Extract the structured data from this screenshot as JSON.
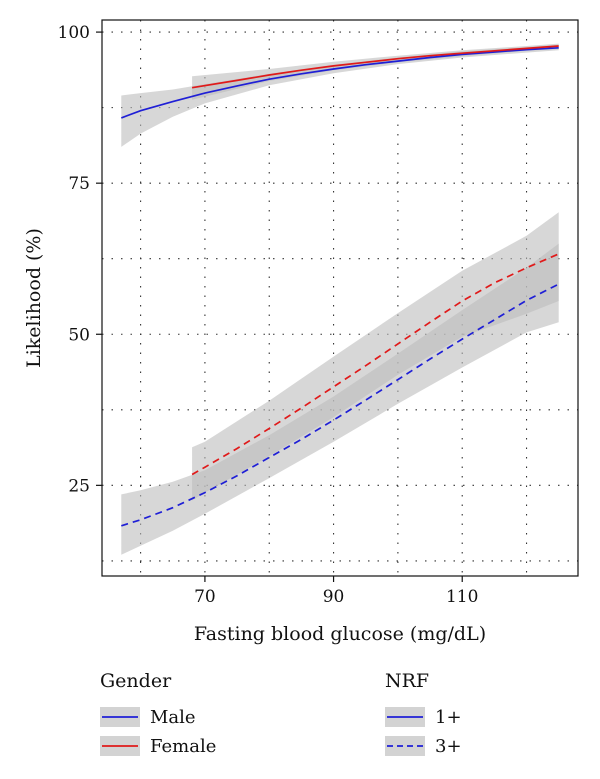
{
  "chart_data": {
    "type": "line",
    "xlabel": "Fasting blood glucose (mg/dL)",
    "ylabel": "Likelihood (%)",
    "xlim": [
      54,
      128
    ],
    "ylim": [
      10,
      102
    ],
    "xticks": [
      70,
      90,
      110
    ],
    "yticks": [
      25,
      50,
      75,
      100
    ],
    "x_grid": [
      60,
      70,
      80,
      90,
      100,
      110,
      120
    ],
    "y_grid": [
      12.5,
      25,
      37.5,
      50,
      62.5,
      75,
      87.5,
      100
    ],
    "grid": true,
    "series": [
      {
        "name": "Male / 1+",
        "color": "#1f1fd6",
        "dash": "solid",
        "points": [
          [
            57,
            85.8
          ],
          [
            60,
            87
          ],
          [
            65,
            88.5
          ],
          [
            70,
            89.9
          ],
          [
            75,
            91.1
          ],
          [
            80,
            92.2
          ],
          [
            85,
            93.1
          ],
          [
            90,
            93.9
          ],
          [
            95,
            94.6
          ],
          [
            100,
            95.2
          ],
          [
            105,
            95.8
          ],
          [
            110,
            96.3
          ],
          [
            115,
            96.7
          ],
          [
            120,
            97.1
          ],
          [
            125,
            97.4
          ]
        ],
        "band": {
          "lower": [
            [
              57,
              81
            ],
            [
              60,
              83.2
            ],
            [
              65,
              86
            ],
            [
              70,
              88.2
            ],
            [
              80,
              91.2
            ],
            [
              90,
              93.2
            ],
            [
              100,
              94.7
            ],
            [
              110,
              95.8
            ],
            [
              120,
              96.6
            ],
            [
              125,
              97
            ]
          ],
          "upper": [
            [
              57,
              89.5
            ],
            [
              60,
              89.9
            ],
            [
              65,
              90.5
            ],
            [
              70,
              91.4
            ],
            [
              80,
              93.1
            ],
            [
              90,
              94.6
            ],
            [
              100,
              95.8
            ],
            [
              110,
              96.8
            ],
            [
              120,
              97.5
            ],
            [
              125,
              97.9
            ]
          ]
        }
      },
      {
        "name": "Female / 1+",
        "color": "#e01a1a",
        "dash": "solid",
        "points": [
          [
            68,
            90.8
          ],
          [
            75,
            92
          ],
          [
            80,
            92.9
          ],
          [
            85,
            93.7
          ],
          [
            90,
            94.4
          ],
          [
            95,
            95
          ],
          [
            100,
            95.6
          ],
          [
            105,
            96.1
          ],
          [
            110,
            96.5
          ],
          [
            115,
            96.9
          ],
          [
            120,
            97.3
          ],
          [
            125,
            97.7
          ]
        ],
        "band": {
          "lower": [
            [
              68,
              88.8
            ],
            [
              80,
              91.9
            ],
            [
              90,
              93.7
            ],
            [
              100,
              95
            ],
            [
              110,
              96
            ],
            [
              120,
              96.9
            ],
            [
              125,
              97.2
            ]
          ],
          "upper": [
            [
              68,
              92.7
            ],
            [
              80,
              93.9
            ],
            [
              90,
              95.1
            ],
            [
              100,
              96.1
            ],
            [
              110,
              97
            ],
            [
              120,
              97.7
            ],
            [
              125,
              98.1
            ]
          ]
        }
      },
      {
        "name": "Male / 3+",
        "color": "#1f1fd6",
        "dash": "dashed",
        "points": [
          [
            57,
            18.3
          ],
          [
            60,
            19.3
          ],
          [
            65,
            21.3
          ],
          [
            70,
            23.8
          ],
          [
            75,
            26.6
          ],
          [
            80,
            29.6
          ],
          [
            85,
            32.6
          ],
          [
            90,
            35.8
          ],
          [
            95,
            39.1
          ],
          [
            100,
            42.5
          ],
          [
            105,
            45.9
          ],
          [
            110,
            49.2
          ],
          [
            115,
            52.4
          ],
          [
            120,
            55.6
          ],
          [
            125,
            58.3
          ]
        ],
        "band": {
          "lower": [
            [
              57,
              13.5
            ],
            [
              60,
              15
            ],
            [
              65,
              17.5
            ],
            [
              70,
              20.3
            ],
            [
              80,
              26.2
            ],
            [
              90,
              32.2
            ],
            [
              100,
              38.5
            ],
            [
              110,
              44.5
            ],
            [
              120,
              50.3
            ],
            [
              125,
              52
            ]
          ],
          "upper": [
            [
              57,
              23.5
            ],
            [
              60,
              24.2
            ],
            [
              65,
              25.6
            ],
            [
              70,
              27.5
            ],
            [
              80,
              33.3
            ],
            [
              90,
              39.7
            ],
            [
              100,
              46.8
            ],
            [
              110,
              54
            ],
            [
              120,
              61
            ],
            [
              125,
              65
            ]
          ]
        }
      },
      {
        "name": "Female / 3+",
        "color": "#e01a1a",
        "dash": "dashed",
        "points": [
          [
            68,
            26.8
          ],
          [
            70,
            28
          ],
          [
            75,
            31.1
          ],
          [
            80,
            34.4
          ],
          [
            85,
            37.8
          ],
          [
            90,
            41.3
          ],
          [
            95,
            44.8
          ],
          [
            100,
            48.4
          ],
          [
            105,
            52
          ],
          [
            110,
            55.5
          ],
          [
            115,
            58.5
          ],
          [
            120,
            61
          ],
          [
            125,
            63.3
          ]
        ],
        "band": {
          "lower": [
            [
              68,
              22.5
            ],
            [
              70,
              23.8
            ],
            [
              80,
              29.8
            ],
            [
              90,
              36.3
            ],
            [
              100,
              43.3
            ],
            [
              110,
              49.6
            ],
            [
              120,
              53.4
            ],
            [
              125,
              55.5
            ]
          ],
          "upper": [
            [
              68,
              31.3
            ],
            [
              70,
              32.2
            ],
            [
              80,
              39
            ],
            [
              90,
              46.3
            ],
            [
              100,
              53.5
            ],
            [
              110,
              60.5
            ],
            [
              120,
              66.3
            ],
            [
              125,
              70.2
            ]
          ]
        }
      }
    ],
    "band_color": "#bdbdbd",
    "legend": [
      {
        "title": "Gender",
        "entries": [
          {
            "label": "Male",
            "color": "#1f1fd6",
            "dash": "solid"
          },
          {
            "label": "Female",
            "color": "#e01a1a",
            "dash": "solid"
          }
        ]
      },
      {
        "title": "NRF",
        "entries": [
          {
            "label": "1+",
            "color": "#1f1fd6",
            "dash": "solid"
          },
          {
            "label": "3+",
            "color": "#1f1fd6",
            "dash": "dashed"
          }
        ]
      }
    ],
    "legend_placement": "bottom"
  }
}
